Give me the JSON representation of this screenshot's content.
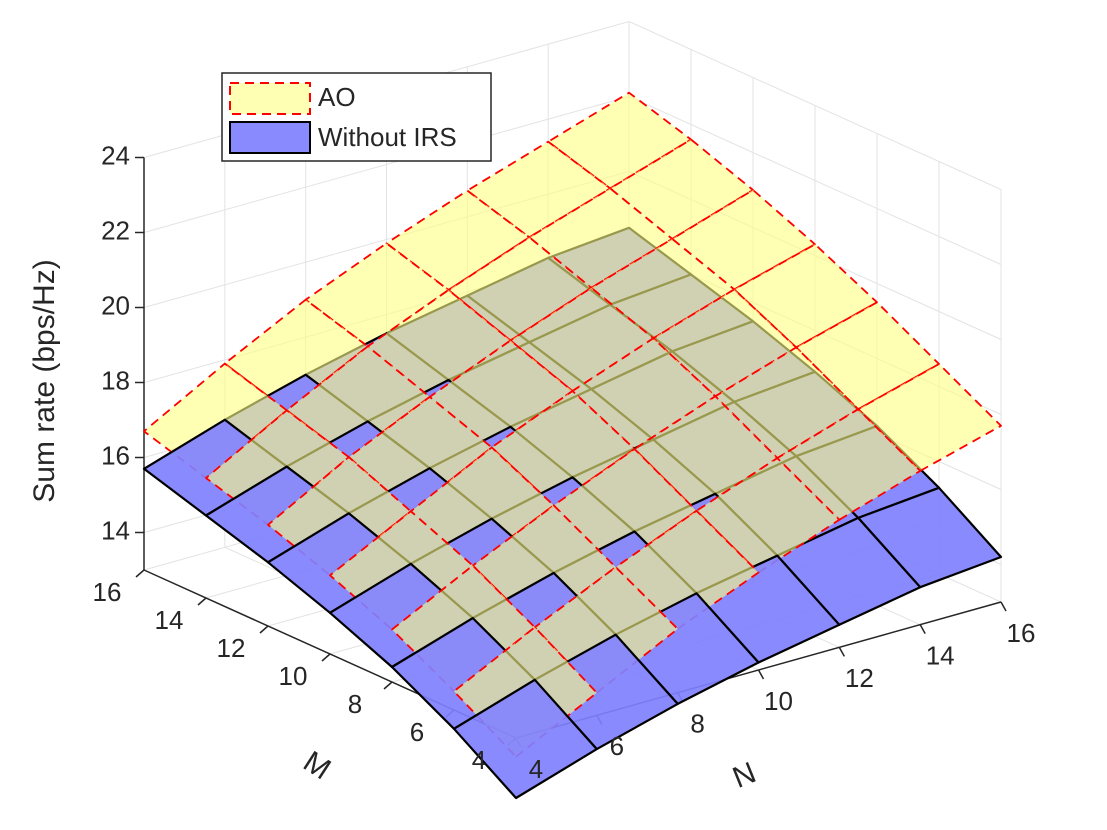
{
  "chart_data": {
    "type": "surface",
    "title": "",
    "xlabel": "N",
    "ylabel": "M",
    "zlabel": "Sum rate (bps/Hz)",
    "x": [
      4,
      6,
      8,
      10,
      12,
      14,
      16
    ],
    "y": [
      4,
      6,
      8,
      10,
      12,
      14,
      16
    ],
    "x_ticks": [
      "4",
      "6",
      "8",
      "10",
      "12",
      "14",
      "16"
    ],
    "y_ticks": [
      "4",
      "6",
      "8",
      "10",
      "12",
      "14",
      "16"
    ],
    "z_ticks": [
      "14",
      "16",
      "18",
      "20",
      "22",
      "24"
    ],
    "xlim": [
      4,
      16
    ],
    "ylim": [
      4,
      16
    ],
    "zlim": [
      13,
      24
    ],
    "grid": true,
    "legend_position": "top-left",
    "series": [
      {
        "name": "AO",
        "face_color": "#ffff80",
        "edge_color": "#ff0000",
        "edge_style": "dashed",
        "z": [
          [
            12.5,
            13.6,
            14.7,
            15.6,
            16.4,
            17.1,
            17.7
          ],
          [
            13.5,
            14.6,
            15.6,
            16.5,
            17.3,
            18.0,
            18.6
          ],
          [
            14.4,
            15.5,
            16.5,
            17.4,
            18.2,
            18.9,
            19.5
          ],
          [
            15.1,
            16.2,
            17.3,
            18.2,
            19.0,
            19.7,
            20.3
          ],
          [
            15.7,
            16.9,
            17.9,
            18.8,
            19.6,
            20.3,
            21.0
          ],
          [
            16.2,
            17.4,
            18.5,
            19.4,
            20.2,
            20.9,
            21.6
          ],
          [
            16.7,
            17.9,
            19.0,
            19.9,
            20.7,
            21.4,
            22.1
          ]
        ]
      },
      {
        "name": "Without IRS",
        "face_color": "#8080ff",
        "edge_color": "#000000",
        "edge_style": "solid",
        "z": [
          [
            11.4,
            12.1,
            12.7,
            13.2,
            13.6,
            14.0,
            14.2
          ],
          [
            12.5,
            13.2,
            13.8,
            14.3,
            14.7,
            15.1,
            15.3
          ],
          [
            13.4,
            14.1,
            14.7,
            15.2,
            15.6,
            16.0,
            16.2
          ],
          [
            14.1,
            14.8,
            15.4,
            15.9,
            16.3,
            16.7,
            16.9
          ],
          [
            14.7,
            15.4,
            16.0,
            16.5,
            16.9,
            17.3,
            17.5
          ],
          [
            15.2,
            15.9,
            16.5,
            17.0,
            17.4,
            17.8,
            18.0
          ],
          [
            15.7,
            16.4,
            17.0,
            17.5,
            17.9,
            18.3,
            18.5
          ]
        ]
      }
    ]
  }
}
